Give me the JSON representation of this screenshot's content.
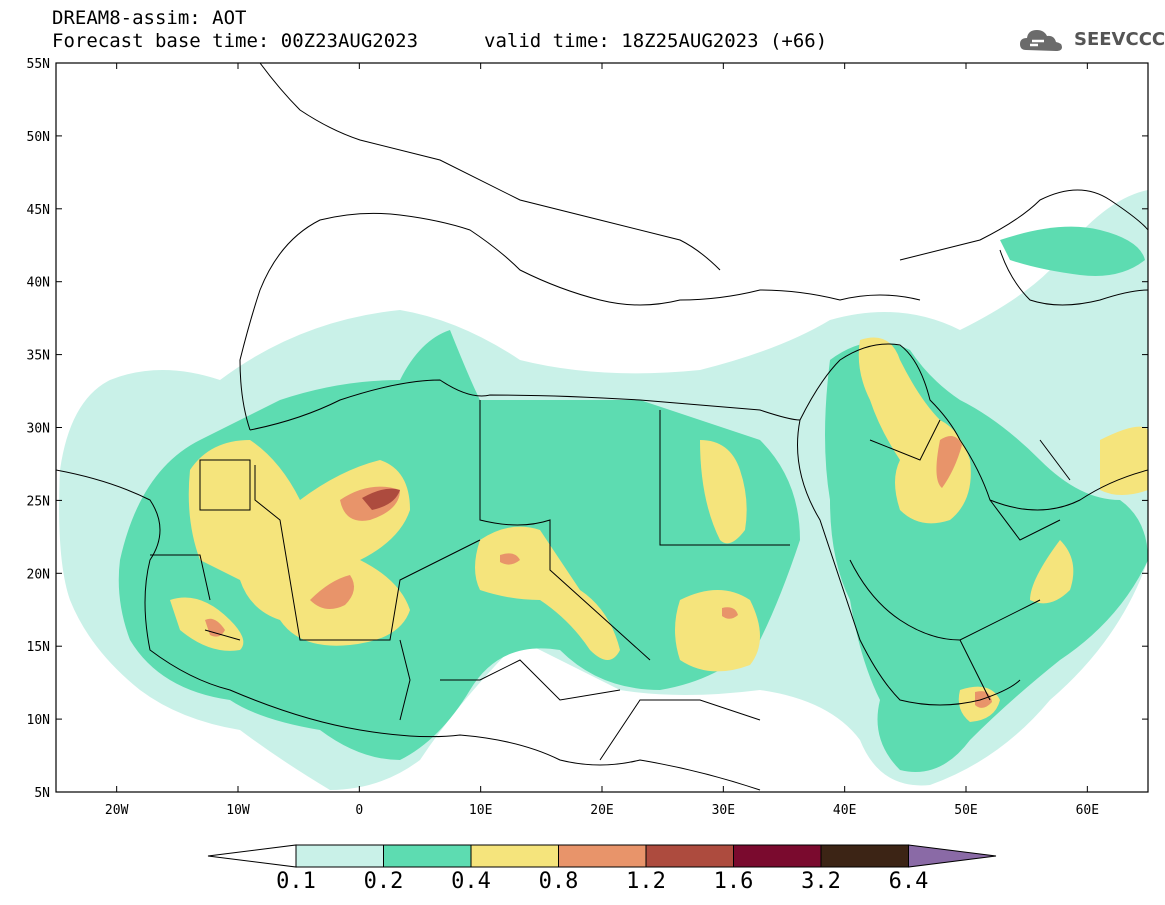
{
  "header": {
    "line1": "DREAM8-assim: AOT",
    "line2": "Forecast base time: 00Z23AUG2023",
    "valid": "valid time: 18Z25AUG2023 (+66)",
    "logo_text": "SEEVCCC",
    "logo_icon": "cloud-icon"
  },
  "map": {
    "lon_labels": [
      "20W",
      "10W",
      "0",
      "10E",
      "20E",
      "30E",
      "40E",
      "50E",
      "60E"
    ],
    "lat_labels": [
      "55N",
      "50N",
      "45N",
      "40N",
      "35N",
      "30N",
      "25N",
      "20N",
      "15N",
      "10N",
      "5N"
    ],
    "variable": "AOT"
  },
  "colorbar": {
    "labels": [
      "0.1",
      "0.2",
      "0.4",
      "0.8",
      "1.2",
      "1.6",
      "3.2",
      "6.4"
    ],
    "colors": [
      "#ffffff",
      "#c9f1e8",
      "#5ddcb1",
      "#f5e47c",
      "#e8946a",
      "#ad4b3e",
      "#7a0a2e",
      "#3c2415",
      "#8a6aa6"
    ]
  }
}
